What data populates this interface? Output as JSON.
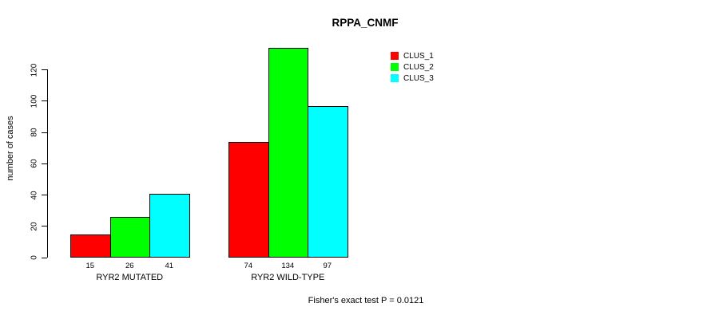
{
  "chart_data": {
    "type": "bar",
    "title": "RPPA_CNMF",
    "ylabel": "number of cases",
    "xlabel": "",
    "categories": [
      "RYR2 MUTATED",
      "RYR2 WILD-TYPE"
    ],
    "series": [
      {
        "name": "CLUS_1",
        "color": "#ff0000",
        "values": [
          15,
          74
        ]
      },
      {
        "name": "CLUS_2",
        "color": "#00ff00",
        "values": [
          26,
          134
        ]
      },
      {
        "name": "CLUS_3",
        "color": "#00ffff",
        "values": [
          41,
          97
        ]
      }
    ],
    "bar_labels": [
      [
        15,
        26,
        41
      ],
      [
        74,
        134,
        97
      ]
    ],
    "ylim": [
      0,
      120
    ],
    "yticks": [
      0,
      20,
      40,
      60,
      80,
      100,
      120
    ],
    "grid": false,
    "legend_position": "top-right",
    "footer": "Fisher's exact test P = 0.0121",
    "colors": {
      "background": "#ffffff",
      "axis": "#000000",
      "text": "#000000"
    }
  }
}
